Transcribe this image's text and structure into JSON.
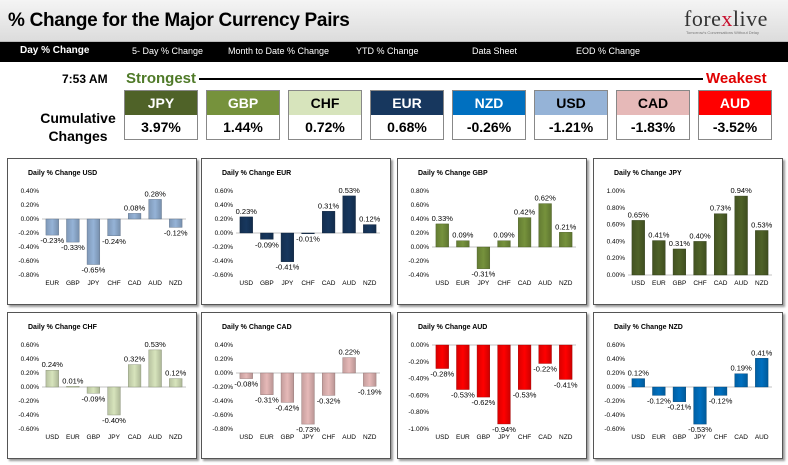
{
  "header": {
    "title": "% Change for the Major Currency Pairs",
    "logo_main": "fore",
    "logo_x": "x",
    "logo_rest": "live",
    "logo_tagline": "Tomorrow's Conversations Without Delay"
  },
  "tabs": [
    {
      "label": "Day % Change",
      "active": true
    },
    {
      "label": "5- Day % Change",
      "active": false
    },
    {
      "label": "Month to Date % Change",
      "active": false
    },
    {
      "label": "YTD % Change",
      "active": false
    },
    {
      "label": "Data Sheet",
      "active": false
    },
    {
      "label": "EOD % Change",
      "active": false
    }
  ],
  "summary": {
    "time": "7:53 AM",
    "strongest_label": "Strongest",
    "weakest_label": "Weakest",
    "cumulative_label_1": "Cumulative",
    "cumulative_label_2": "Changes",
    "currencies": [
      {
        "code": "JPY",
        "value": "3.97%",
        "bg": "#4f6228",
        "fg": "#ffffff"
      },
      {
        "code": "GBP",
        "value": "1.44%",
        "bg": "#76923c",
        "fg": "#ffffff"
      },
      {
        "code": "CHF",
        "value": "0.72%",
        "bg": "#d7e4bc",
        "fg": "#000000"
      },
      {
        "code": "EUR",
        "value": "0.68%",
        "bg": "#17375e",
        "fg": "#ffffff"
      },
      {
        "code": "NZD",
        "value": "-0.26%",
        "bg": "#0070c0",
        "fg": "#ffffff"
      },
      {
        "code": "USD",
        "value": "-1.21%",
        "bg": "#95b3d7",
        "fg": "#000000"
      },
      {
        "code": "CAD",
        "value": "-1.83%",
        "bg": "#e6b9b8",
        "fg": "#000000"
      },
      {
        "code": "AUD",
        "value": "-3.52%",
        "bg": "#ff0000",
        "fg": "#ffffff"
      }
    ]
  },
  "chart_data": [
    {
      "type": "bar",
      "title": "Daily % Change USD",
      "color": "#95b3d7",
      "categories": [
        "EUR",
        "GBP",
        "JPY",
        "CHF",
        "CAD",
        "AUD",
        "NZD"
      ],
      "values": [
        -0.23,
        -0.33,
        -0.65,
        -0.24,
        0.08,
        0.28,
        -0.12
      ],
      "labels": [
        "-0.23%",
        "-0.33%",
        "-0.65%",
        "-0.24%",
        "0.08%",
        "0.28%",
        "-0.12%"
      ],
      "ylim": [
        -0.8,
        0.4
      ],
      "ticks": [
        "0.40%",
        "0.20%",
        "0.00%",
        "-0.20%",
        "-0.40%",
        "-0.60%",
        "-0.80%"
      ]
    },
    {
      "type": "bar",
      "title": "Daily % Change EUR",
      "color": "#17375e",
      "categories": [
        "USD",
        "GBP",
        "JPY",
        "CHF",
        "CAD",
        "AUD",
        "NZD"
      ],
      "values": [
        0.23,
        -0.09,
        -0.41,
        -0.01,
        0.31,
        0.53,
        0.12
      ],
      "labels": [
        "0.23%",
        "-0.09%",
        "-0.41%",
        "-0.01%",
        "0.31%",
        "0.53%",
        "0.12%"
      ],
      "ylim": [
        -0.6,
        0.6
      ],
      "ticks": [
        "0.60%",
        "0.40%",
        "0.20%",
        "0.00%",
        "-0.20%",
        "-0.40%",
        "-0.60%"
      ]
    },
    {
      "type": "bar",
      "title": "Daily % Change GBP",
      "color": "#76923c",
      "categories": [
        "USD",
        "EUR",
        "JPY",
        "CHF",
        "CAD",
        "AUD",
        "NZD"
      ],
      "values": [
        0.33,
        0.09,
        -0.31,
        0.09,
        0.42,
        0.62,
        0.21
      ],
      "labels": [
        "0.33%",
        "0.09%",
        "-0.31%",
        "0.09%",
        "0.42%",
        "0.62%",
        "0.21%"
      ],
      "ylim": [
        -0.4,
        0.8
      ],
      "ticks": [
        "0.80%",
        "0.60%",
        "0.40%",
        "0.20%",
        "0.00%",
        "-0.20%",
        "-0.40%"
      ]
    },
    {
      "type": "bar",
      "title": "Daily % Change JPY",
      "color": "#4f6228",
      "categories": [
        "USD",
        "EUR",
        "GBP",
        "CHF",
        "CAD",
        "AUD",
        "NZD"
      ],
      "values": [
        0.65,
        0.41,
        0.31,
        0.4,
        0.73,
        0.94,
        0.53
      ],
      "labels": [
        "0.65%",
        "0.41%",
        "0.31%",
        "0.40%",
        "0.73%",
        "0.94%",
        "0.53%"
      ],
      "ylim": [
        0,
        1.0
      ],
      "ticks": [
        "1.00%",
        "0.80%",
        "0.60%",
        "0.40%",
        "0.20%",
        "0.00%"
      ]
    },
    {
      "type": "bar",
      "title": "Daily % Change CHF",
      "color": "#d7e4bc",
      "categories": [
        "USD",
        "EUR",
        "GBP",
        "JPY",
        "CAD",
        "AUD",
        "NZD"
      ],
      "values": [
        0.24,
        0.01,
        -0.09,
        -0.4,
        0.32,
        0.53,
        0.12
      ],
      "labels": [
        "0.24%",
        "0.01%",
        "-0.09%",
        "-0.40%",
        "0.32%",
        "0.53%",
        "0.12%"
      ],
      "ylim": [
        -0.6,
        0.6
      ],
      "ticks": [
        "0.60%",
        "0.40%",
        "0.20%",
        "0.00%",
        "-0.20%",
        "-0.40%",
        "-0.60%"
      ]
    },
    {
      "type": "bar",
      "title": "Daily % Change CAD",
      "color": "#e6b9b8",
      "categories": [
        "USD",
        "EUR",
        "GBP",
        "JPY",
        "CHF",
        "AUD",
        "NZD"
      ],
      "values": [
        -0.08,
        -0.31,
        -0.42,
        -0.73,
        -0.32,
        0.22,
        -0.19
      ],
      "labels": [
        "-0.08%",
        "-0.31%",
        "-0.42%",
        "-0.73%",
        "-0.32%",
        "0.22%",
        "-0.19%"
      ],
      "ylim": [
        -0.8,
        0.4
      ],
      "ticks": [
        "0.40%",
        "0.20%",
        "0.00%",
        "-0.20%",
        "-0.40%",
        "-0.60%",
        "-0.80%"
      ]
    },
    {
      "type": "bar",
      "title": "Daily % Change AUD",
      "color": "#ff0000",
      "categories": [
        "USD",
        "EUR",
        "GBP",
        "JPY",
        "CHF",
        "CAD",
        "NZD"
      ],
      "values": [
        -0.28,
        -0.53,
        -0.62,
        -0.94,
        -0.53,
        -0.22,
        -0.41
      ],
      "labels": [
        "-0.28%",
        "-0.53%",
        "-0.62%",
        "-0.94%",
        "-0.53%",
        "-0.22%",
        "-0.41%"
      ],
      "ylim": [
        -1.0,
        0
      ],
      "ticks": [
        "0.00%",
        "-0.20%",
        "-0.40%",
        "-0.60%",
        "-0.80%",
        "-1.00%"
      ]
    },
    {
      "type": "bar",
      "title": "Daily % Change NZD",
      "color": "#0070c0",
      "categories": [
        "USD",
        "EUR",
        "GBP",
        "JPY",
        "CHF",
        "CAD",
        "AUD"
      ],
      "values": [
        0.12,
        -0.12,
        -0.21,
        -0.53,
        -0.12,
        0.19,
        0.41
      ],
      "labels": [
        "0.12%",
        "-0.12%",
        "-0.21%",
        "-0.53%",
        "-0.12%",
        "0.19%",
        "0.41%"
      ],
      "ylim": [
        -0.6,
        0.6
      ],
      "ticks": [
        "0.60%",
        "0.40%",
        "0.20%",
        "0.00%",
        "-0.20%",
        "-0.40%",
        "-0.60%"
      ]
    }
  ]
}
